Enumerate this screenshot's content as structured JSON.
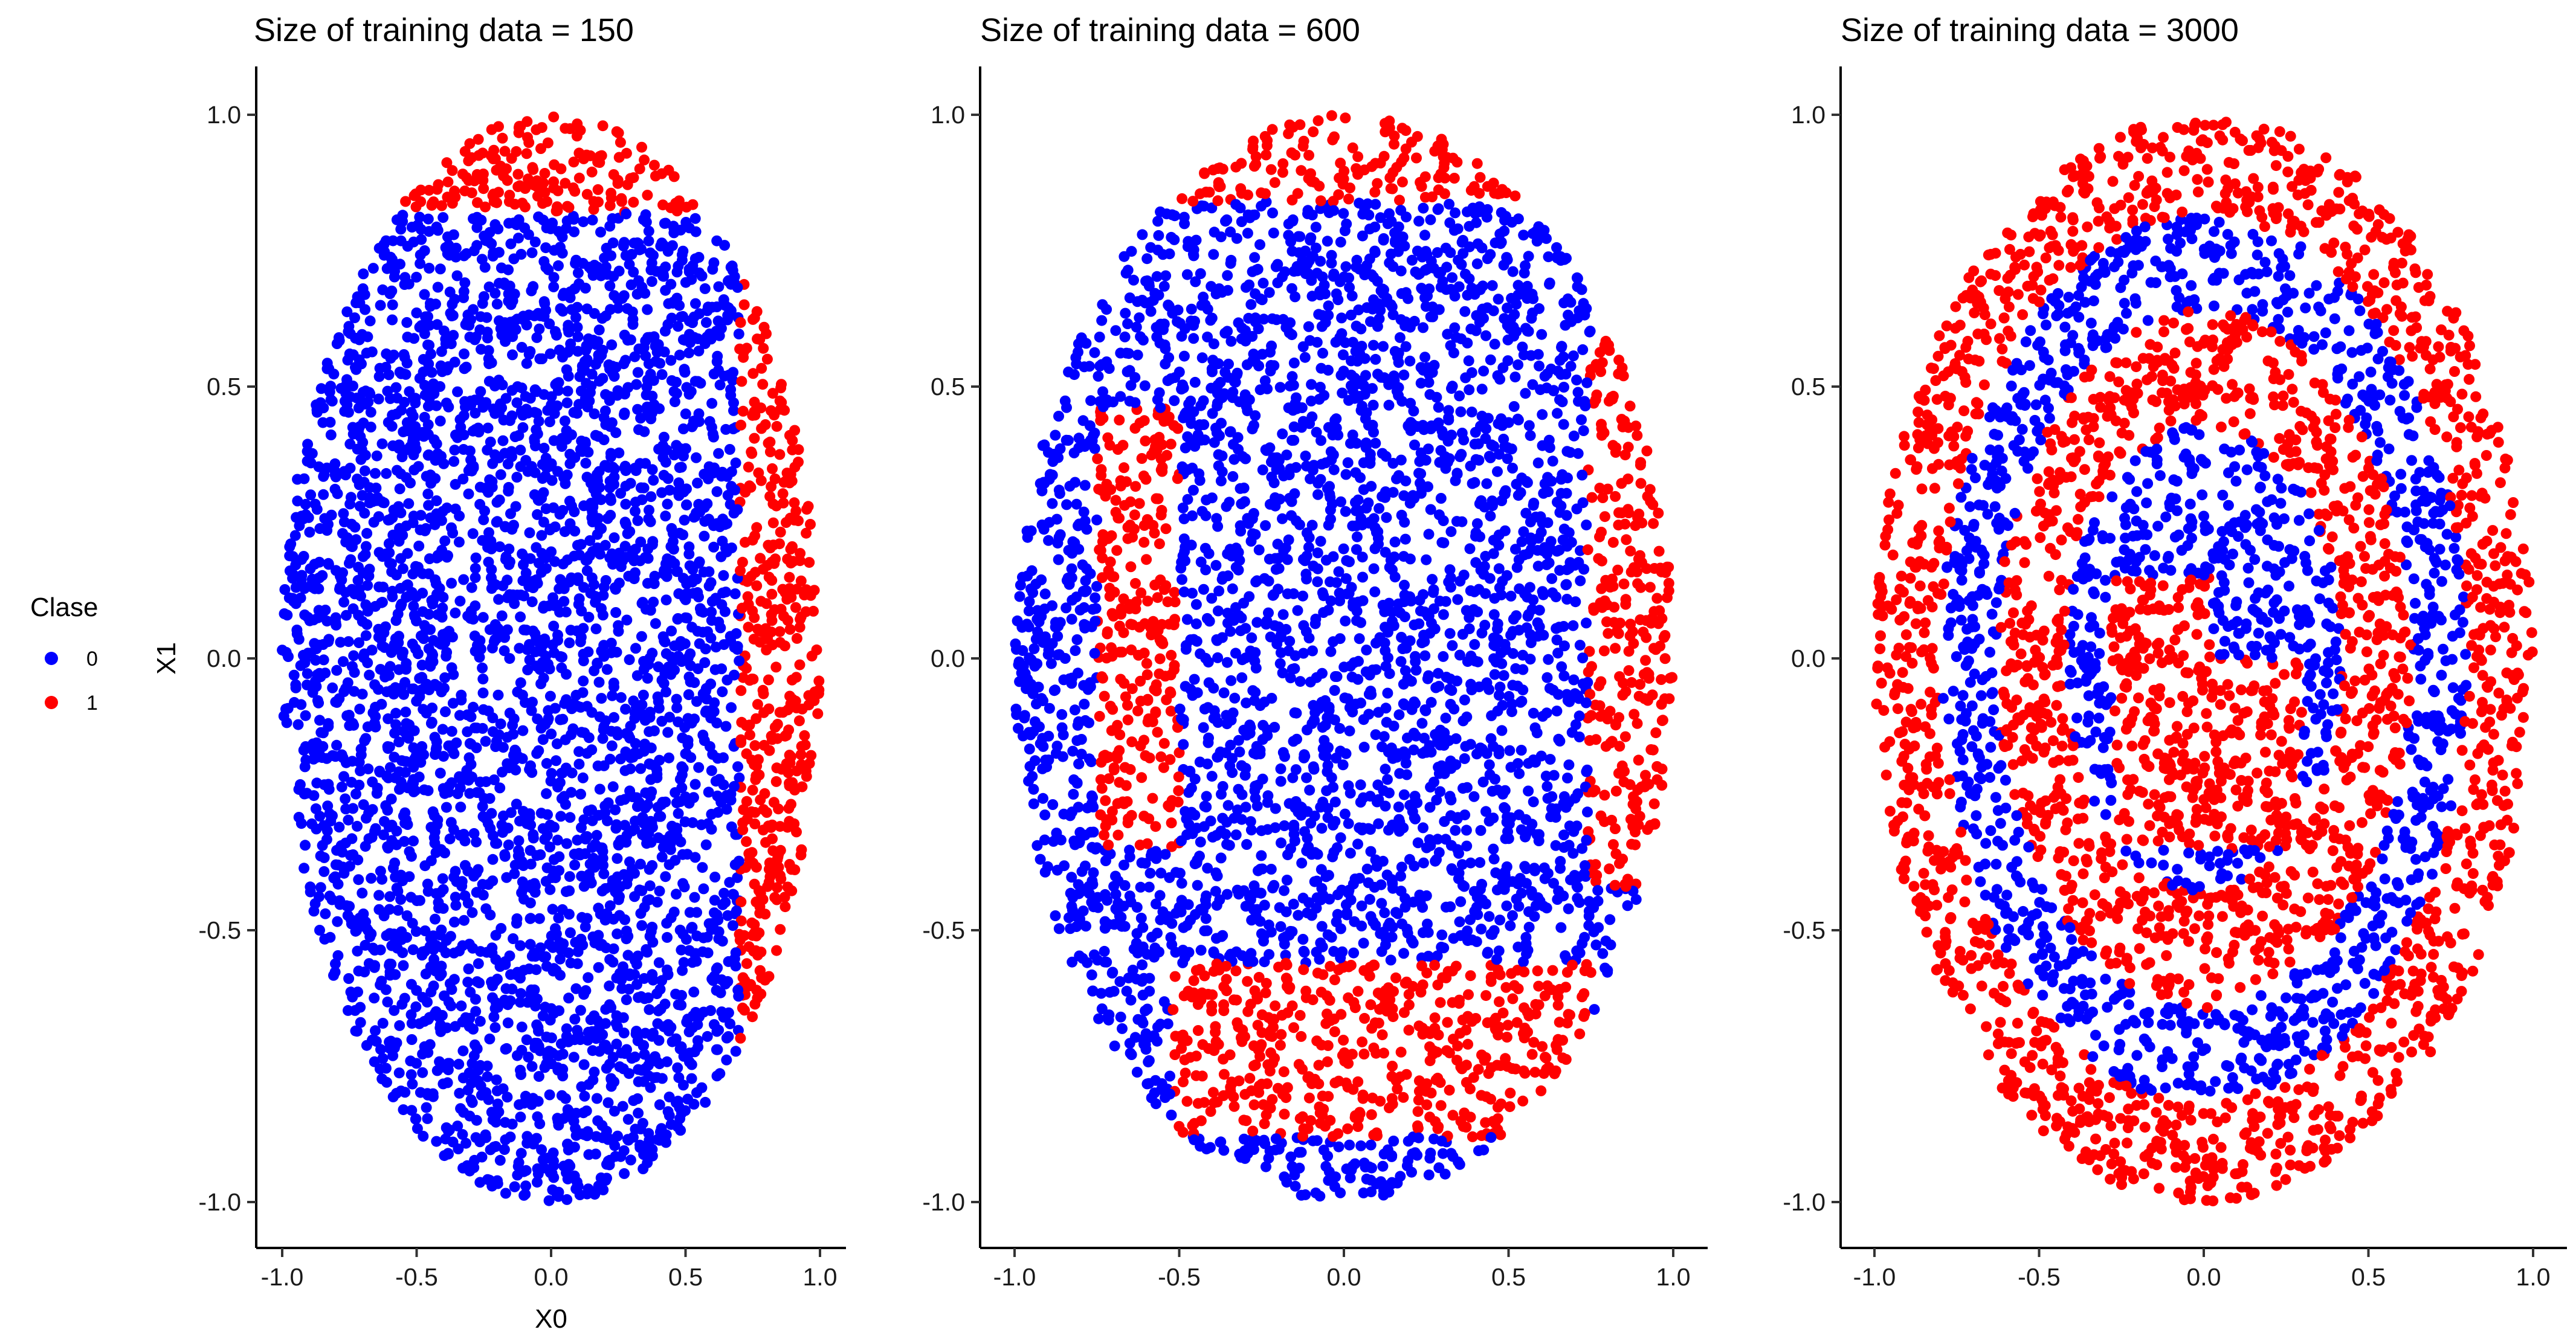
{
  "legend": {
    "title": "Clase",
    "items": [
      {
        "label": "0",
        "color": "#0000FF"
      },
      {
        "label": "1",
        "color": "#FF0000"
      }
    ]
  },
  "xlabel": "X0",
  "ylabel": "X1",
  "chart_data": [
    {
      "type": "scatter",
      "title": "Size of training data =  150",
      "xlabel": "X0",
      "ylabel": "X1",
      "xlim": [
        -1.05,
        1.1
      ],
      "ylim": [
        -1.1,
        1.09
      ],
      "xticks": [
        -1.0,
        -0.5,
        0.0,
        0.5,
        1.0
      ],
      "yticks": [
        -1.0,
        -0.5,
        0.0,
        0.5,
        1.0
      ],
      "grid": false,
      "legend": "left",
      "point_domain": "ellipse x^2 + y^2 <= 1 (approx. 4000 random points per panel)",
      "classes": [
        {
          "name": "0",
          "color": "#0000FF",
          "region": "x < 0.7 and y < 0.82"
        },
        {
          "name": "1",
          "color": "#FF0000",
          "region": "y >= 0.82 (top cap) or x >= 0.7 (right band)"
        }
      ]
    },
    {
      "type": "scatter",
      "title": "Size of training data =  600",
      "xlabel": "",
      "ylabel": "",
      "xlim": [
        -1.05,
        1.1
      ],
      "ylim": [
        -1.1,
        1.09
      ],
      "xticks": [
        -1.0,
        -0.5,
        0.0,
        0.5,
        1.0
      ],
      "yticks": [
        -1.0,
        -0.5,
        0.0,
        0.5,
        1.0
      ],
      "grid": false,
      "classes": [
        {
          "name": "0",
          "color": "#0000FF",
          "region": "interior of ellipse excluding red regions"
        },
        {
          "name": "1",
          "color": "#FF0000",
          "region": "top cap y > 0.84; right band x > 0.74 for -0.4 < y < 0.6; left bar -0.75 < x < -0.5 for -0.35 < y < 0.45; bottom bar -0.5 < x < 0.75 for -0.87 < y < -0.56"
        }
      ]
    },
    {
      "type": "scatter",
      "title": "Size of training data =  3000",
      "xlabel": "",
      "ylabel": "",
      "xlim": [
        -1.05,
        1.1
      ],
      "ylim": [
        -1.1,
        1.09
      ],
      "xticks": [
        -1.0,
        -0.5,
        0.0,
        0.5,
        1.0
      ],
      "yticks": [
        -1.0,
        -0.5,
        0.0,
        0.5,
        1.0
      ],
      "grid": false,
      "classes": [
        {
          "name": "0",
          "color": "#0000FF",
          "region": "alternating concentric rings (outer ring, inner ring)"
        },
        {
          "name": "1",
          "color": "#FF0000",
          "region": "outer band ring, middle ring and inner core with notch"
        }
      ]
    }
  ]
}
